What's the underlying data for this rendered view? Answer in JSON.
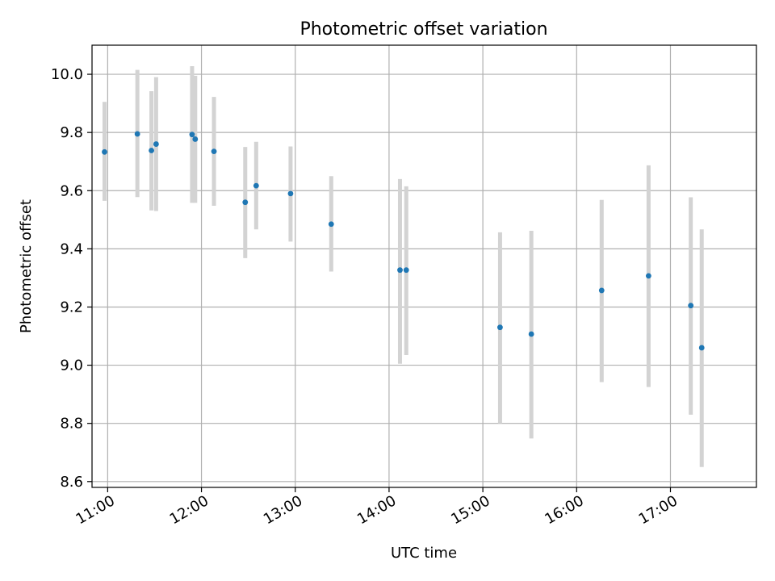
{
  "chart_data": {
    "type": "scatter",
    "title": "Photometric offset variation",
    "xlabel": "UTC time",
    "ylabel": "Photometric offset",
    "xlim": [
      "10:50",
      "17:55"
    ],
    "ylim": [
      8.58,
      10.1
    ],
    "x_ticks": [
      "11:00",
      "12:00",
      "13:00",
      "14:00",
      "15:00",
      "16:00",
      "17:00"
    ],
    "y_ticks": [
      "8.6",
      "8.8",
      "9.0",
      "9.2",
      "9.4",
      "9.6",
      "9.8",
      "10.0"
    ],
    "grid": true,
    "point_color": "#1f77b4",
    "errorbar_color": "#d3d3d3",
    "series": [
      {
        "points": [
          {
            "x": "10:58",
            "y": 9.733,
            "ylow": 9.565,
            "yhigh": 9.905
          },
          {
            "x": "11:19",
            "y": 9.795,
            "ylow": 9.578,
            "yhigh": 10.015
          },
          {
            "x": "11:28",
            "y": 9.738,
            "ylow": 9.532,
            "yhigh": 9.942
          },
          {
            "x": "11:31",
            "y": 9.76,
            "ylow": 9.53,
            "yhigh": 9.99
          },
          {
            "x": "11:54",
            "y": 9.793,
            "ylow": 9.558,
            "yhigh": 10.028
          },
          {
            "x": "11:56",
            "y": 9.777,
            "ylow": 9.558,
            "yhigh": 9.995
          },
          {
            "x": "12:08",
            "y": 9.735,
            "ylow": 9.548,
            "yhigh": 9.922
          },
          {
            "x": "12:28",
            "y": 9.56,
            "ylow": 9.368,
            "yhigh": 9.75
          },
          {
            "x": "12:35",
            "y": 9.617,
            "ylow": 9.467,
            "yhigh": 9.768
          },
          {
            "x": "12:57",
            "y": 9.59,
            "ylow": 9.425,
            "yhigh": 9.752
          },
          {
            "x": "13:23",
            "y": 9.485,
            "ylow": 9.322,
            "yhigh": 9.65
          },
          {
            "x": "14:07",
            "y": 9.327,
            "ylow": 9.005,
            "yhigh": 9.64
          },
          {
            "x": "14:11",
            "y": 9.327,
            "ylow": 9.035,
            "yhigh": 9.615
          },
          {
            "x": "15:11",
            "y": 9.13,
            "ylow": 8.8,
            "yhigh": 9.457
          },
          {
            "x": "15:31",
            "y": 9.107,
            "ylow": 8.748,
            "yhigh": 9.462
          },
          {
            "x": "16:16",
            "y": 9.257,
            "ylow": 8.942,
            "yhigh": 9.568
          },
          {
            "x": "16:46",
            "y": 9.307,
            "ylow": 8.925,
            "yhigh": 9.687
          },
          {
            "x": "17:13",
            "y": 9.205,
            "ylow": 8.83,
            "yhigh": 9.577
          },
          {
            "x": "17:20",
            "y": 9.06,
            "ylow": 8.65,
            "yhigh": 9.467
          }
        ]
      }
    ]
  }
}
